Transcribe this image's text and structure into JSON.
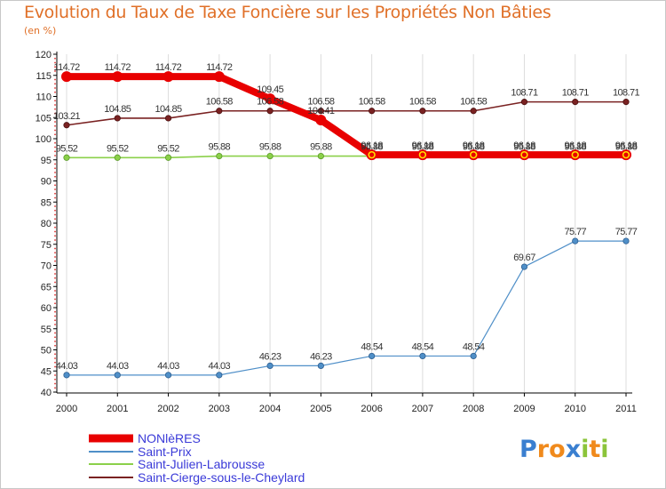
{
  "chart_data": {
    "type": "line",
    "title": "Evolution du Taux de Taxe Foncière sur les Propriétés Non Bâties",
    "unit_label": "(en %)",
    "xlabel": "",
    "ylabel": "",
    "ylim": [
      40,
      120
    ],
    "yticks": [
      40,
      45,
      50,
      55,
      60,
      65,
      70,
      75,
      80,
      85,
      90,
      95,
      100,
      105,
      110,
      115,
      120
    ],
    "categories": [
      "2000",
      "2001",
      "2002",
      "2003",
      "2004",
      "2005",
      "2006",
      "2007",
      "2008",
      "2009",
      "2010",
      "2011"
    ],
    "grid": "vertical",
    "legend_position": "bottom-left",
    "series": [
      {
        "name": "NONlèRES",
        "color": "#e80000",
        "values": [
          114.72,
          114.72,
          114.72,
          114.72,
          109.45,
          104.41,
          96.18,
          96.18,
          96.18,
          96.18,
          96.18,
          96.18
        ],
        "labels": [
          "114.72",
          "114.72",
          "114.72",
          "114.72",
          "109.45",
          "104.41",
          "96.18",
          "96.18",
          "96.18",
          "96.18",
          "96.18",
          "96.18"
        ]
      },
      {
        "name": "Saint-Prix",
        "color": "#4f8fc8",
        "values": [
          44.03,
          44.03,
          44.03,
          44.03,
          46.23,
          46.23,
          48.54,
          48.54,
          48.54,
          69.67,
          75.77,
          75.77
        ],
        "labels": [
          "44.03",
          "44.03",
          "44.03",
          "44.03",
          "46.23",
          "46.23",
          "48.54",
          "48.54",
          "48.54",
          "69.67",
          "75.77",
          "75.77"
        ]
      },
      {
        "name": "Saint-Julien-Labrousse",
        "color": "#8bd04a",
        "values": [
          95.52,
          95.52,
          95.52,
          95.88,
          95.88,
          95.88,
          95.88,
          95.88,
          95.88,
          95.88,
          95.88,
          95.88
        ],
        "labels": [
          "95.52",
          "95.52",
          "95.52",
          "95.88",
          "95.88",
          "95.88",
          "95.88",
          "95.88",
          "95.88",
          "95.88",
          "95.88",
          "95.88"
        ]
      },
      {
        "name": "Saint-Cierge-sous-le-Cheylard",
        "color": "#7a2222",
        "values": [
          103.21,
          104.85,
          104.85,
          106.58,
          106.58,
          106.58,
          106.58,
          106.58,
          106.58,
          108.71,
          108.71,
          108.71
        ],
        "labels": [
          "103.21",
          "104.85",
          "104.85",
          "106.58",
          "106.58",
          "106.58",
          "106.58",
          "106.58",
          "106.58",
          "108.71",
          "108.71",
          "108.71"
        ]
      }
    ]
  },
  "branding": {
    "logo_text": "Proxiti",
    "logo_letters": [
      "P",
      "r",
      "o",
      "x",
      "i",
      "t",
      "i"
    ],
    "logo_colors": [
      "#3a7fd0",
      "#f08a1c",
      "#f08a1c",
      "#3a7fd0",
      "#8bc43a",
      "#f08a1c",
      "#8bc43a"
    ]
  }
}
